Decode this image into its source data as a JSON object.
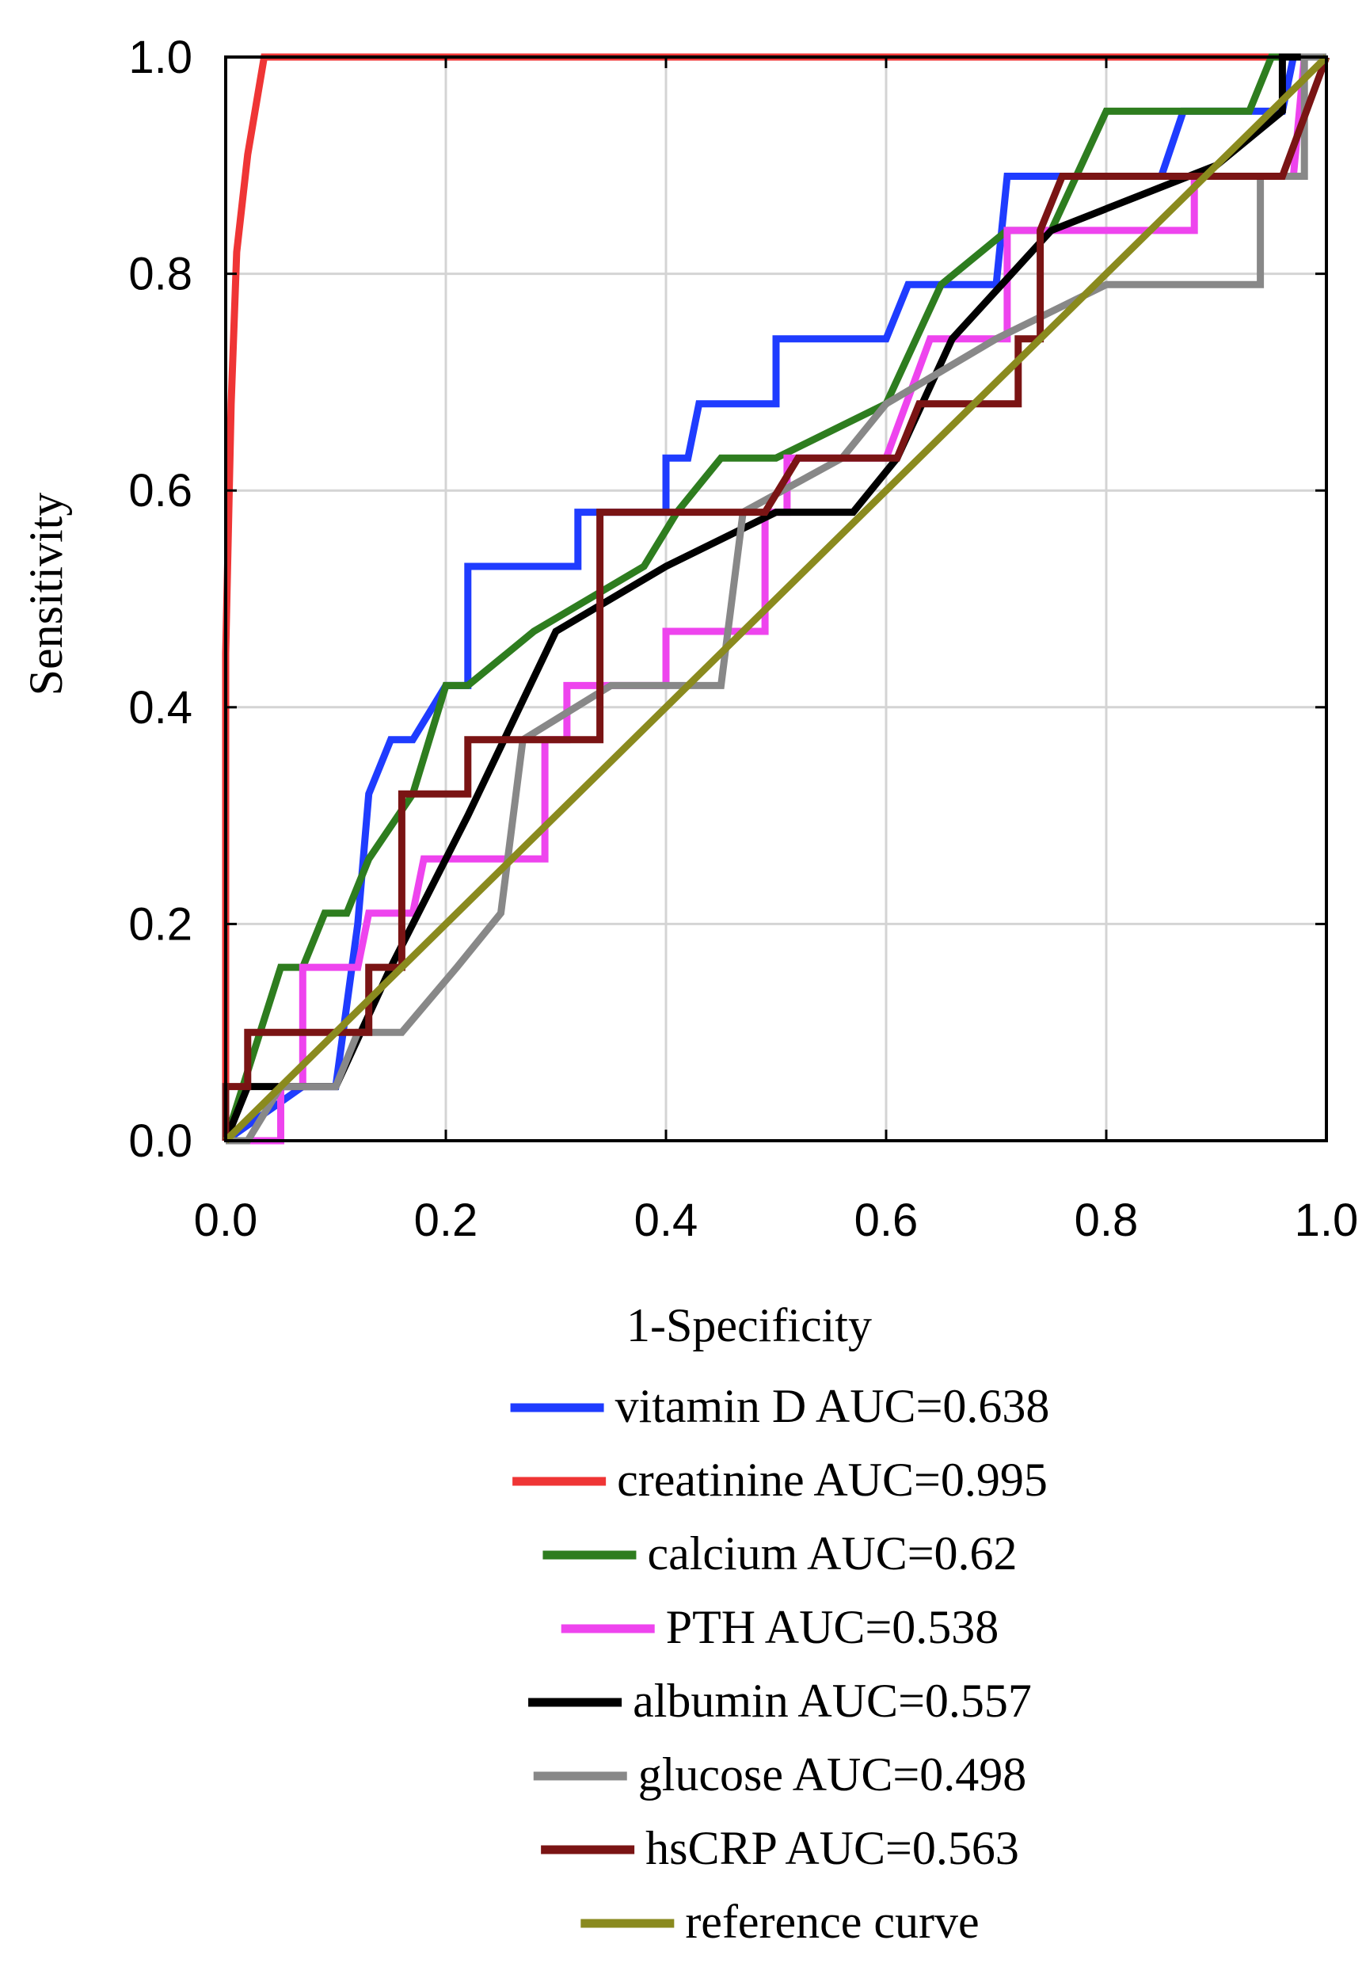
{
  "chart_data": {
    "type": "line",
    "title": "",
    "xlabel": "1-Specificity",
    "ylabel": "Sensitivity",
    "xlim": [
      0,
      1
    ],
    "ylim": [
      0,
      1
    ],
    "grid": true,
    "legend_position": "bottom",
    "x_ticks": [
      "0.0",
      "0.2",
      "0.4",
      "0.6",
      "0.8",
      "1.0"
    ],
    "y_ticks": [
      "0.0",
      "0.2",
      "0.4",
      "0.6",
      "0.8",
      "1.0"
    ],
    "series": [
      {
        "name": "vitamin D",
        "label": "vitamin D  AUC=0.638",
        "auc": 0.638,
        "color": "#1f3cff",
        "points": [
          [
            0,
            0
          ],
          [
            0.07,
            0.05
          ],
          [
            0.1,
            0.05
          ],
          [
            0.12,
            0.2
          ],
          [
            0.13,
            0.32
          ],
          [
            0.15,
            0.37
          ],
          [
            0.17,
            0.37
          ],
          [
            0.2,
            0.42
          ],
          [
            0.22,
            0.42
          ],
          [
            0.22,
            0.53
          ],
          [
            0.32,
            0.53
          ],
          [
            0.32,
            0.58
          ],
          [
            0.4,
            0.58
          ],
          [
            0.4,
            0.63
          ],
          [
            0.42,
            0.63
          ],
          [
            0.43,
            0.68
          ],
          [
            0.5,
            0.68
          ],
          [
            0.5,
            0.74
          ],
          [
            0.6,
            0.74
          ],
          [
            0.62,
            0.79
          ],
          [
            0.7,
            0.79
          ],
          [
            0.71,
            0.89
          ],
          [
            0.85,
            0.89
          ],
          [
            0.87,
            0.95
          ],
          [
            0.96,
            0.95
          ],
          [
            0.97,
            1
          ],
          [
            1,
            1
          ]
        ]
      },
      {
        "name": "creatinine",
        "label": "creatinine  AUC=0.995",
        "auc": 0.995,
        "color": "#ef3535",
        "points": [
          [
            0,
            0
          ],
          [
            0,
            0.45
          ],
          [
            0.005,
            0.68
          ],
          [
            0.01,
            0.82
          ],
          [
            0.02,
            0.91
          ],
          [
            0.035,
            1
          ],
          [
            1,
            1
          ]
        ]
      },
      {
        "name": "calcium",
        "label": "calcium  AUC=0.62",
        "auc": 0.62,
        "color": "#2e7d1f",
        "points": [
          [
            0,
            0
          ],
          [
            0.05,
            0.16
          ],
          [
            0.07,
            0.16
          ],
          [
            0.09,
            0.21
          ],
          [
            0.11,
            0.21
          ],
          [
            0.13,
            0.26
          ],
          [
            0.17,
            0.32
          ],
          [
            0.2,
            0.42
          ],
          [
            0.22,
            0.42
          ],
          [
            0.28,
            0.47
          ],
          [
            0.38,
            0.53
          ],
          [
            0.41,
            0.58
          ],
          [
            0.45,
            0.63
          ],
          [
            0.5,
            0.63
          ],
          [
            0.6,
            0.68
          ],
          [
            0.65,
            0.79
          ],
          [
            0.71,
            0.84
          ],
          [
            0.75,
            0.84
          ],
          [
            0.8,
            0.95
          ],
          [
            0.93,
            0.95
          ],
          [
            0.95,
            1
          ],
          [
            1,
            1
          ]
        ]
      },
      {
        "name": "PTH",
        "label": "PTH  AUC=0.538",
        "auc": 0.538,
        "color": "#ee44ee",
        "points": [
          [
            0,
            0
          ],
          [
            0.05,
            0
          ],
          [
            0.05,
            0.05
          ],
          [
            0.07,
            0.05
          ],
          [
            0.07,
            0.16
          ],
          [
            0.12,
            0.16
          ],
          [
            0.13,
            0.21
          ],
          [
            0.17,
            0.21
          ],
          [
            0.18,
            0.26
          ],
          [
            0.29,
            0.26
          ],
          [
            0.29,
            0.37
          ],
          [
            0.31,
            0.37
          ],
          [
            0.31,
            0.42
          ],
          [
            0.4,
            0.42
          ],
          [
            0.4,
            0.47
          ],
          [
            0.49,
            0.47
          ],
          [
            0.49,
            0.58
          ],
          [
            0.51,
            0.58
          ],
          [
            0.51,
            0.63
          ],
          [
            0.6,
            0.63
          ],
          [
            0.64,
            0.74
          ],
          [
            0.71,
            0.74
          ],
          [
            0.71,
            0.84
          ],
          [
            0.88,
            0.84
          ],
          [
            0.88,
            0.89
          ],
          [
            0.97,
            0.89
          ],
          [
            0.98,
            1
          ],
          [
            1,
            1
          ]
        ]
      },
      {
        "name": "albumin",
        "label": "albumin  AUC=0.557",
        "auc": 0.557,
        "color": "#000000",
        "points": [
          [
            0,
            0
          ],
          [
            0.02,
            0.05
          ],
          [
            0.1,
            0.05
          ],
          [
            0.15,
            0.16
          ],
          [
            0.22,
            0.3
          ],
          [
            0.3,
            0.47
          ],
          [
            0.4,
            0.53
          ],
          [
            0.5,
            0.58
          ],
          [
            0.57,
            0.58
          ],
          [
            0.61,
            0.63
          ],
          [
            0.66,
            0.74
          ],
          [
            0.75,
            0.84
          ],
          [
            0.8,
            0.86
          ],
          [
            0.9,
            0.9
          ],
          [
            0.96,
            0.95
          ],
          [
            0.96,
            1
          ],
          [
            0.98,
            1
          ],
          [
            1,
            1
          ]
        ]
      },
      {
        "name": "glucose",
        "label": "glucose  AUC=0.498",
        "auc": 0.498,
        "color": "#888888",
        "points": [
          [
            0,
            0
          ],
          [
            0.02,
            0
          ],
          [
            0.05,
            0.05
          ],
          [
            0.1,
            0.05
          ],
          [
            0.12,
            0.1
          ],
          [
            0.16,
            0.1
          ],
          [
            0.21,
            0.16
          ],
          [
            0.25,
            0.21
          ],
          [
            0.27,
            0.37
          ],
          [
            0.35,
            0.42
          ],
          [
            0.45,
            0.42
          ],
          [
            0.47,
            0.58
          ],
          [
            0.56,
            0.63
          ],
          [
            0.6,
            0.68
          ],
          [
            0.7,
            0.74
          ],
          [
            0.8,
            0.79
          ],
          [
            0.94,
            0.79
          ],
          [
            0.94,
            0.89
          ],
          [
            0.98,
            0.89
          ],
          [
            0.98,
            1
          ],
          [
            1,
            1
          ]
        ]
      },
      {
        "name": "hsCRP",
        "label": "hsCRP  AUC=0.563",
        "auc": 0.563,
        "color": "#7a1414",
        "points": [
          [
            0,
            0
          ],
          [
            0,
            0.05
          ],
          [
            0.02,
            0.05
          ],
          [
            0.02,
            0.1
          ],
          [
            0.13,
            0.1
          ],
          [
            0.13,
            0.16
          ],
          [
            0.16,
            0.16
          ],
          [
            0.16,
            0.32
          ],
          [
            0.22,
            0.32
          ],
          [
            0.22,
            0.37
          ],
          [
            0.34,
            0.37
          ],
          [
            0.34,
            0.58
          ],
          [
            0.49,
            0.58
          ],
          [
            0.52,
            0.63
          ],
          [
            0.61,
            0.63
          ],
          [
            0.63,
            0.68
          ],
          [
            0.72,
            0.68
          ],
          [
            0.72,
            0.74
          ],
          [
            0.74,
            0.74
          ],
          [
            0.74,
            0.84
          ],
          [
            0.76,
            0.89
          ],
          [
            0.96,
            0.89
          ],
          [
            1,
            1
          ]
        ]
      },
      {
        "name": "reference curve",
        "label": "reference curve",
        "color": "#8a8a1e",
        "points": [
          [
            0,
            0
          ],
          [
            1,
            1
          ]
        ]
      }
    ]
  }
}
